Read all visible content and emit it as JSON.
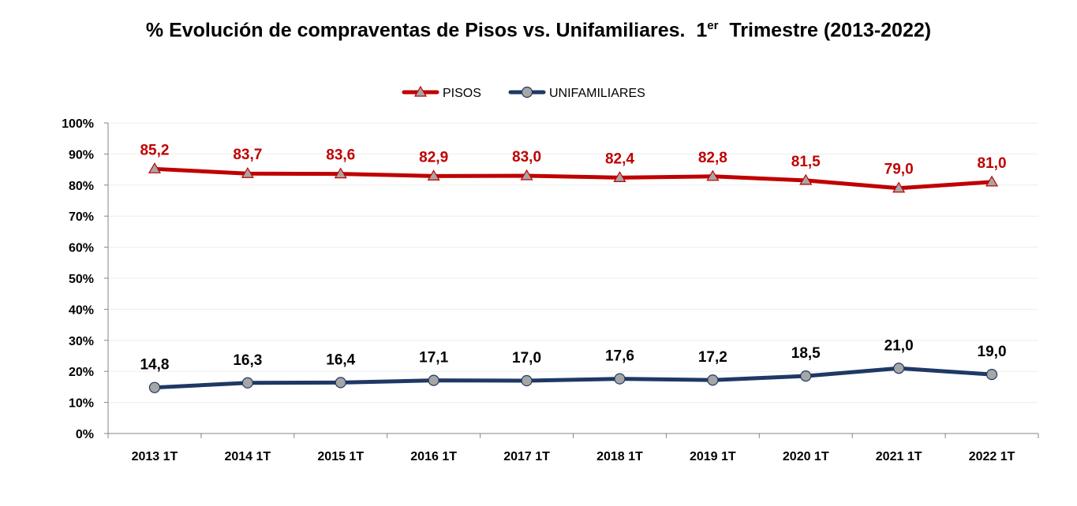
{
  "chart_data": {
    "type": "line",
    "title_main": "% Evolución de compraventas de Pisos vs. Unifamiliares.  1",
    "title_sup": "er",
    "title_end": "  Trimestre (2013-2022)",
    "xlabel": "",
    "ylabel": "",
    "ylim": [
      0,
      100
    ],
    "y_ticks": [
      "0%",
      "10%",
      "20%",
      "30%",
      "40%",
      "50%",
      "60%",
      "70%",
      "80%",
      "90%",
      "100%"
    ],
    "grid": true,
    "legend_placement": "top-center",
    "categories": [
      "2013 1T",
      "2014 1T",
      "2015 1T",
      "2016 1T",
      "2017 1T",
      "2018 1T",
      "2019 1T",
      "2020 1T",
      "2021 1T",
      "2022 1T"
    ],
    "series": [
      {
        "name": "PISOS",
        "color": "#C00000",
        "marker": "triangle",
        "values": [
          85.2,
          83.7,
          83.6,
          82.9,
          83.0,
          82.4,
          82.8,
          81.5,
          79.0,
          81.0
        ],
        "labels": [
          "85,2",
          "83,7",
          "83,6",
          "82,9",
          "83,0",
          "82,4",
          "82,8",
          "81,5",
          "79,0",
          "81,0"
        ]
      },
      {
        "name": "UNIFAMILIARES",
        "color": "#1F3864",
        "marker": "circle",
        "values": [
          14.8,
          16.3,
          16.4,
          17.1,
          17.0,
          17.6,
          17.2,
          18.5,
          21.0,
          19.0
        ],
        "labels": [
          "14,8",
          "16,3",
          "16,4",
          "17,1",
          "17,0",
          "17,6",
          "17,2",
          "18,5",
          "21,0",
          "19,0"
        ]
      }
    ]
  }
}
